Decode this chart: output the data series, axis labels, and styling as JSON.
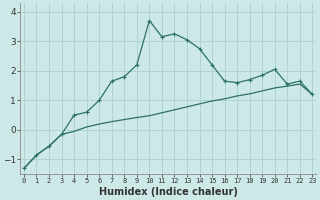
{
  "xlabel": "Humidex (Indice chaleur)",
  "x": [
    0,
    1,
    2,
    3,
    4,
    5,
    6,
    7,
    8,
    9,
    10,
    11,
    12,
    13,
    14,
    15,
    16,
    17,
    18,
    19,
    20,
    21,
    22,
    23
  ],
  "line1_y": [
    -1.3,
    -0.85,
    -0.55,
    -0.15,
    0.5,
    0.6,
    1.0,
    1.65,
    1.8,
    2.2,
    3.7,
    3.15,
    3.25,
    3.05,
    2.75,
    2.2,
    1.65,
    1.6,
    1.7,
    1.85,
    2.05,
    1.55,
    1.65,
    1.2
  ],
  "line2_y": [
    -1.3,
    -0.85,
    -0.55,
    -0.15,
    -0.05,
    0.1,
    0.2,
    0.28,
    0.35,
    0.42,
    0.48,
    0.58,
    0.68,
    0.78,
    0.88,
    0.98,
    1.05,
    1.15,
    1.22,
    1.32,
    1.42,
    1.48,
    1.55,
    1.2
  ],
  "line_color": "#2d7068",
  "bg_color": "#cce9e8",
  "grid_color": "#b0d4d2",
  "ylim": [
    -1.5,
    4.3
  ],
  "yticks": [
    -1,
    0,
    1,
    2,
    3,
    4
  ],
  "xlim": [
    -0.3,
    23.3
  ]
}
